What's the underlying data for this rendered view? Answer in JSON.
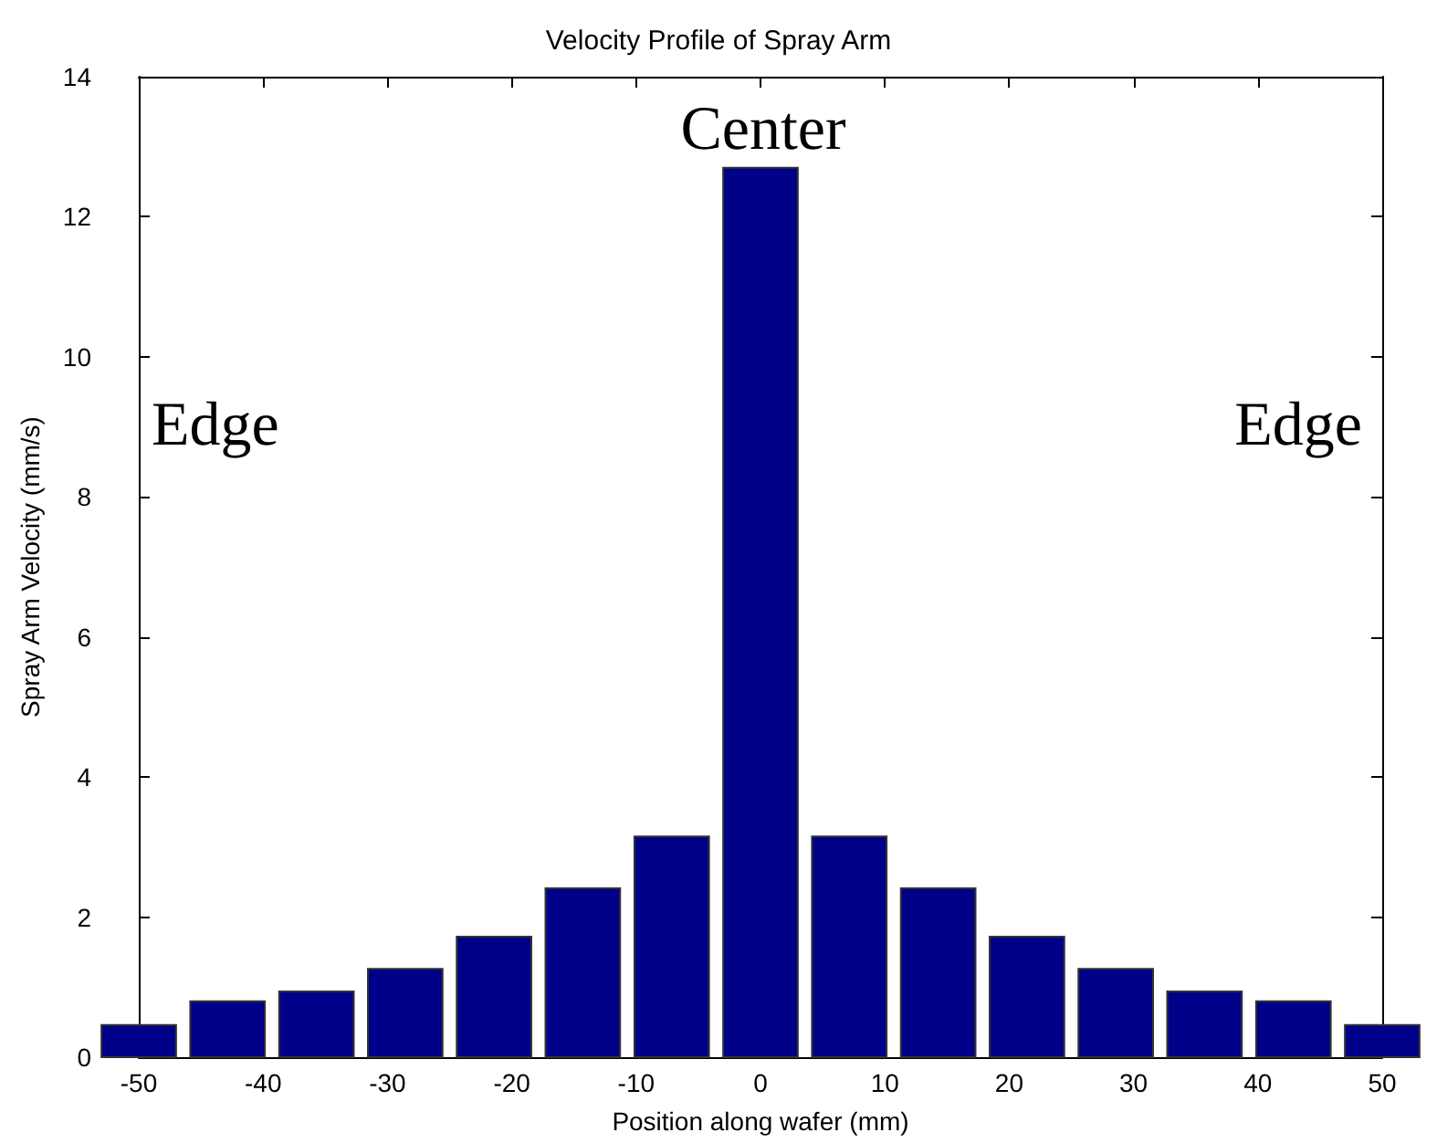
{
  "chart_data": {
    "type": "bar",
    "title": "Velocity Profile of Spray Arm",
    "xlabel": "Position along wafer (mm)",
    "ylabel": "Spray Arm Velocity (mm/s)",
    "x": [
      -50,
      -42.86,
      -35.71,
      -28.57,
      -21.43,
      -14.29,
      -7.14,
      0,
      7.14,
      14.29,
      21.43,
      28.57,
      35.71,
      42.86,
      50
    ],
    "values": [
      0.46,
      0.8,
      0.94,
      1.26,
      1.72,
      2.41,
      3.15,
      12.7,
      3.15,
      2.41,
      1.72,
      1.26,
      0.94,
      0.8,
      0.46
    ],
    "color": "#000088",
    "xlim": [
      -50,
      50
    ],
    "xticks": [
      -50,
      -40,
      -30,
      -20,
      -10,
      0,
      10,
      20,
      30,
      40,
      50
    ],
    "ylim": [
      0,
      14
    ],
    "yticks": [
      0,
      2,
      4,
      6,
      8,
      10,
      12,
      14
    ],
    "annotations": [
      "Center",
      "Edge",
      "Edge"
    ]
  }
}
